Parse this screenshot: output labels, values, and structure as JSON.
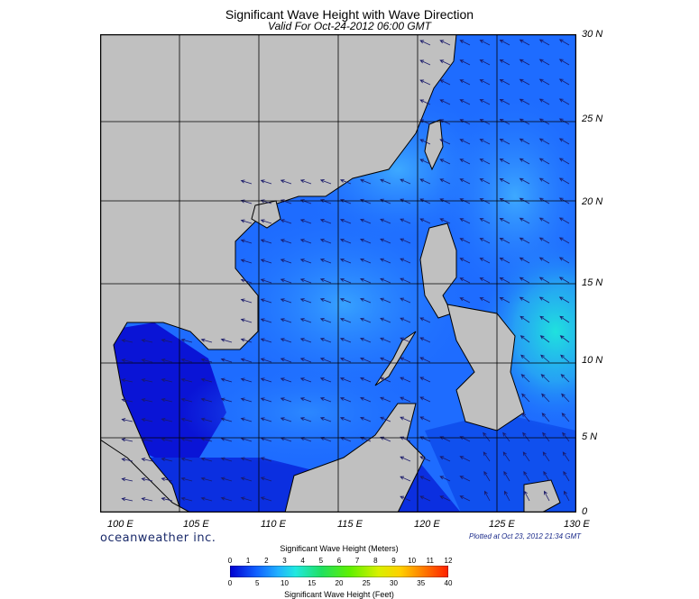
{
  "header": {
    "title": "Significant Wave Height with Wave Direction",
    "subtitle": "Valid For Oct-24-2012 06:00 GMT"
  },
  "axes": {
    "lon_labels": [
      "100 E",
      "105 E",
      "110 E",
      "115 E",
      "120 E",
      "125 E",
      "130 E"
    ],
    "lat_labels": [
      "30 N",
      "25 N",
      "20 N",
      "15 N",
      "10 N",
      "5 N",
      "0"
    ],
    "lon_range": [
      100,
      130
    ],
    "lat_range": [
      0,
      30
    ],
    "grid": true
  },
  "footer": {
    "brand": "oceanweather inc.",
    "plotted": "Plotted at Oct 23, 2012 21:34 GMT"
  },
  "legend": {
    "title_top": "Significant Wave Height (Meters)",
    "title_bottom": "Significant Wave Height (Feet)",
    "meters": [
      "0",
      "1",
      "2",
      "3",
      "4",
      "5",
      "6",
      "7",
      "8",
      "9",
      "10",
      "11",
      "12"
    ],
    "feet": [
      "0",
      "5",
      "10",
      "15",
      "20",
      "25",
      "30",
      "35",
      "40"
    ]
  },
  "colors": {
    "land": "#c0c0c0",
    "wave_low": "#0a10d8",
    "wave_mid": "#1e8cff",
    "wave_high": "#1de8e0",
    "arrow": "#1a1a6a"
  }
}
